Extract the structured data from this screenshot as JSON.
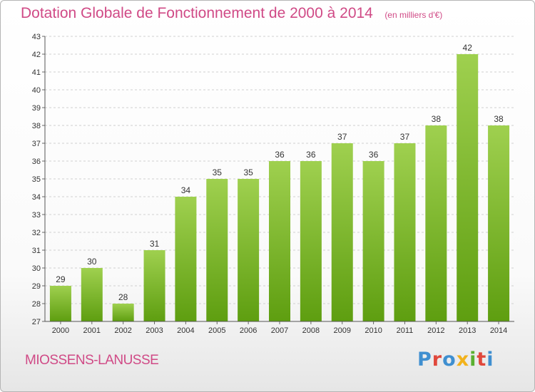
{
  "header": {
    "title": "Dotation Globale de Fonctionnement de 2000 à 2014",
    "subtitle": "(en milliers d'€)"
  },
  "footer": {
    "commune": "MIOSSENS-LANUSSE",
    "logo_text": "Proxiti"
  },
  "colors": {
    "title": "#d04a86",
    "bar_top": "#9fd04f",
    "bar_bottom": "#5e9e10",
    "grid": "#d0d0d0"
  },
  "chart_data": {
    "type": "bar",
    "title": "Dotation Globale de Fonctionnement de 2000 à 2014",
    "subtitle": "(en milliers d'€)",
    "xlabel": "",
    "ylabel": "",
    "categories": [
      "2000",
      "2001",
      "2002",
      "2003",
      "2004",
      "2005",
      "2006",
      "2007",
      "2008",
      "2009",
      "2010",
      "2011",
      "2012",
      "2013",
      "2014"
    ],
    "values": [
      29,
      30,
      28,
      31,
      34,
      35,
      35,
      36,
      36,
      37,
      36,
      37,
      38,
      42,
      38
    ],
    "ylim": [
      27,
      43
    ],
    "yticks": [
      27,
      28,
      29,
      30,
      31,
      32,
      33,
      34,
      35,
      36,
      37,
      38,
      39,
      40,
      41,
      42,
      43
    ],
    "grid": true,
    "legend": "none"
  }
}
